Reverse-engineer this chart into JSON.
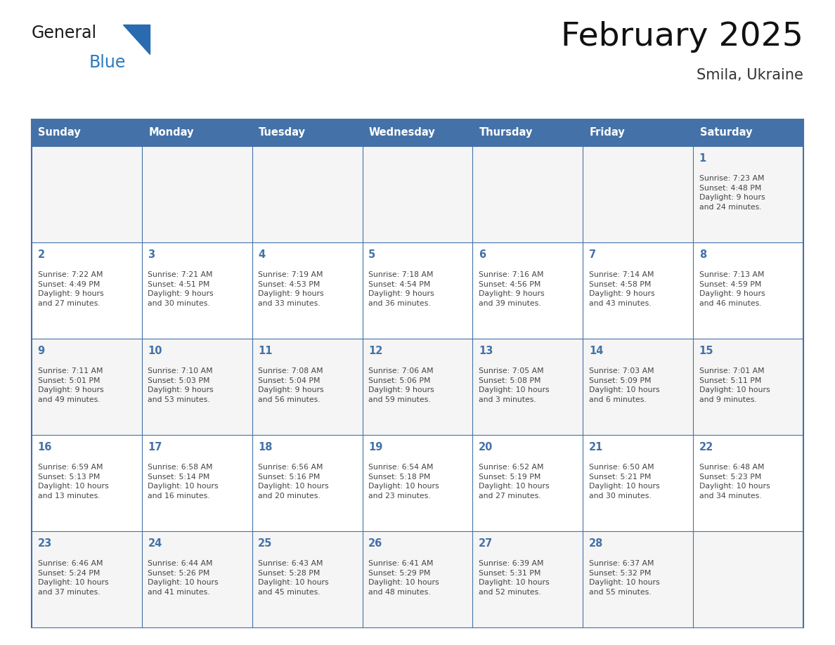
{
  "title": "February 2025",
  "subtitle": "Smila, Ukraine",
  "days_of_week": [
    "Sunday",
    "Monday",
    "Tuesday",
    "Wednesday",
    "Thursday",
    "Friday",
    "Saturday"
  ],
  "header_bg": "#4472a8",
  "header_text_color": "#ffffff",
  "cell_bg_odd": "#f5f5f5",
  "cell_bg_even": "#ffffff",
  "cell_border_color": "#4472a8",
  "day_number_color": "#4472a8",
  "info_text_color": "#444444",
  "background_color": "#ffffff",
  "logo_general_color": "#1a1a1a",
  "logo_blue_color": "#2a7abf",
  "logo_triangle_color": "#2a6aaf",
  "calendar_data": [
    [
      {
        "day": null,
        "info": null
      },
      {
        "day": null,
        "info": null
      },
      {
        "day": null,
        "info": null
      },
      {
        "day": null,
        "info": null
      },
      {
        "day": null,
        "info": null
      },
      {
        "day": null,
        "info": null
      },
      {
        "day": 1,
        "info": "Sunrise: 7:23 AM\nSunset: 4:48 PM\nDaylight: 9 hours\nand 24 minutes."
      }
    ],
    [
      {
        "day": 2,
        "info": "Sunrise: 7:22 AM\nSunset: 4:49 PM\nDaylight: 9 hours\nand 27 minutes."
      },
      {
        "day": 3,
        "info": "Sunrise: 7:21 AM\nSunset: 4:51 PM\nDaylight: 9 hours\nand 30 minutes."
      },
      {
        "day": 4,
        "info": "Sunrise: 7:19 AM\nSunset: 4:53 PM\nDaylight: 9 hours\nand 33 minutes."
      },
      {
        "day": 5,
        "info": "Sunrise: 7:18 AM\nSunset: 4:54 PM\nDaylight: 9 hours\nand 36 minutes."
      },
      {
        "day": 6,
        "info": "Sunrise: 7:16 AM\nSunset: 4:56 PM\nDaylight: 9 hours\nand 39 minutes."
      },
      {
        "day": 7,
        "info": "Sunrise: 7:14 AM\nSunset: 4:58 PM\nDaylight: 9 hours\nand 43 minutes."
      },
      {
        "day": 8,
        "info": "Sunrise: 7:13 AM\nSunset: 4:59 PM\nDaylight: 9 hours\nand 46 minutes."
      }
    ],
    [
      {
        "day": 9,
        "info": "Sunrise: 7:11 AM\nSunset: 5:01 PM\nDaylight: 9 hours\nand 49 minutes."
      },
      {
        "day": 10,
        "info": "Sunrise: 7:10 AM\nSunset: 5:03 PM\nDaylight: 9 hours\nand 53 minutes."
      },
      {
        "day": 11,
        "info": "Sunrise: 7:08 AM\nSunset: 5:04 PM\nDaylight: 9 hours\nand 56 minutes."
      },
      {
        "day": 12,
        "info": "Sunrise: 7:06 AM\nSunset: 5:06 PM\nDaylight: 9 hours\nand 59 minutes."
      },
      {
        "day": 13,
        "info": "Sunrise: 7:05 AM\nSunset: 5:08 PM\nDaylight: 10 hours\nand 3 minutes."
      },
      {
        "day": 14,
        "info": "Sunrise: 7:03 AM\nSunset: 5:09 PM\nDaylight: 10 hours\nand 6 minutes."
      },
      {
        "day": 15,
        "info": "Sunrise: 7:01 AM\nSunset: 5:11 PM\nDaylight: 10 hours\nand 9 minutes."
      }
    ],
    [
      {
        "day": 16,
        "info": "Sunrise: 6:59 AM\nSunset: 5:13 PM\nDaylight: 10 hours\nand 13 minutes."
      },
      {
        "day": 17,
        "info": "Sunrise: 6:58 AM\nSunset: 5:14 PM\nDaylight: 10 hours\nand 16 minutes."
      },
      {
        "day": 18,
        "info": "Sunrise: 6:56 AM\nSunset: 5:16 PM\nDaylight: 10 hours\nand 20 minutes."
      },
      {
        "day": 19,
        "info": "Sunrise: 6:54 AM\nSunset: 5:18 PM\nDaylight: 10 hours\nand 23 minutes."
      },
      {
        "day": 20,
        "info": "Sunrise: 6:52 AM\nSunset: 5:19 PM\nDaylight: 10 hours\nand 27 minutes."
      },
      {
        "day": 21,
        "info": "Sunrise: 6:50 AM\nSunset: 5:21 PM\nDaylight: 10 hours\nand 30 minutes."
      },
      {
        "day": 22,
        "info": "Sunrise: 6:48 AM\nSunset: 5:23 PM\nDaylight: 10 hours\nand 34 minutes."
      }
    ],
    [
      {
        "day": 23,
        "info": "Sunrise: 6:46 AM\nSunset: 5:24 PM\nDaylight: 10 hours\nand 37 minutes."
      },
      {
        "day": 24,
        "info": "Sunrise: 6:44 AM\nSunset: 5:26 PM\nDaylight: 10 hours\nand 41 minutes."
      },
      {
        "day": 25,
        "info": "Sunrise: 6:43 AM\nSunset: 5:28 PM\nDaylight: 10 hours\nand 45 minutes."
      },
      {
        "day": 26,
        "info": "Sunrise: 6:41 AM\nSunset: 5:29 PM\nDaylight: 10 hours\nand 48 minutes."
      },
      {
        "day": 27,
        "info": "Sunrise: 6:39 AM\nSunset: 5:31 PM\nDaylight: 10 hours\nand 52 minutes."
      },
      {
        "day": 28,
        "info": "Sunrise: 6:37 AM\nSunset: 5:32 PM\nDaylight: 10 hours\nand 55 minutes."
      },
      {
        "day": null,
        "info": null
      }
    ]
  ]
}
